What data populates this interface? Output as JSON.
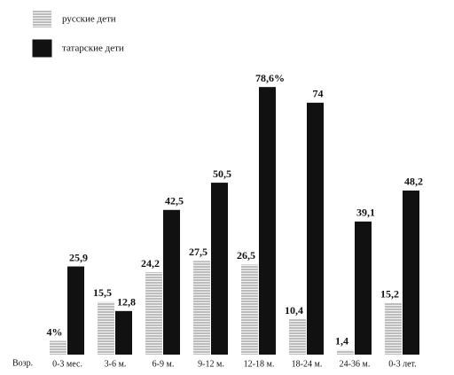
{
  "chart_data": {
    "type": "bar",
    "categories": [
      "0-3 мес.",
      "3-6 м.",
      "6-9 м.",
      "9-12 м.",
      "12-18 м.",
      "18-24 м.",
      "24-36 м.",
      "0-3 лет."
    ],
    "x_label": "Возр.",
    "series": [
      {
        "name": "русские дети",
        "color": "#9a9a9a",
        "pattern": "hatch",
        "values": [
          4,
          15.5,
          24.2,
          27.5,
          26.5,
          10.4,
          1.4,
          15.2
        ],
        "value_labels": [
          "4%",
          "15,5",
          "24,2",
          "27,5",
          "26,5",
          "10,4",
          "1,4",
          "15,2"
        ]
      },
      {
        "name": "татарские дети",
        "color": "#111111",
        "pattern": "solid",
        "values": [
          25.9,
          12.8,
          42.5,
          50.5,
          78.6,
          74,
          39.1,
          48.2
        ],
        "value_labels": [
          "25,9",
          "12,8",
          "42,5",
          "50,5",
          "78,6%",
          "74",
          "39,1",
          "48,2"
        ]
      }
    ]
  }
}
